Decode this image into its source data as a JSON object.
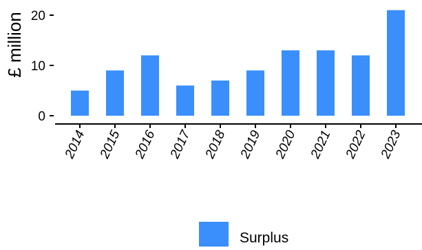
{
  "chart_data": {
    "type": "bar",
    "categories": [
      "2014",
      "2015",
      "2016",
      "2017",
      "2018",
      "2019",
      "2020",
      "2021",
      "2022",
      "2023"
    ],
    "series": [
      {
        "name": "Surplus",
        "values": [
          5,
          9,
          12,
          6,
          7,
          9,
          13,
          13,
          12,
          21
        ],
        "color": "#3a8ffd"
      }
    ],
    "ylabel": "£ million",
    "xlabel": "",
    "ylim": [
      0,
      21
    ],
    "yticks": [
      0,
      10,
      20
    ],
    "grid": false,
    "legend_position": "bottom",
    "colors": {
      "bar": "#3a8ffd",
      "axis": "#000000",
      "text": "#000000"
    }
  }
}
